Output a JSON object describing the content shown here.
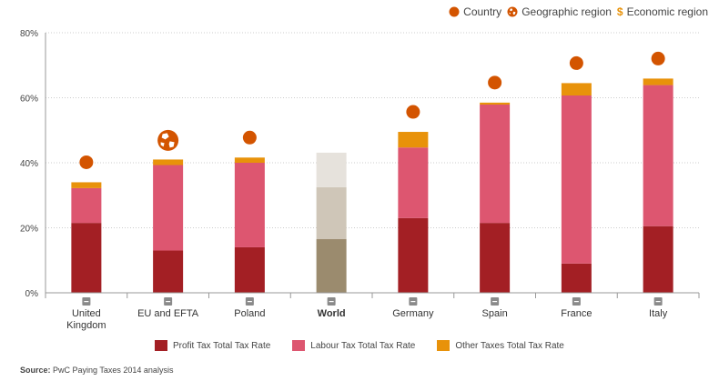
{
  "top_legend": {
    "country": "Country",
    "geographic_region": "Geographic region",
    "economic_region_symbol": "$",
    "economic_region": "Economic region"
  },
  "source": {
    "label": "Source:",
    "text": "PwC Paying Taxes 2014 analysis"
  },
  "colors": {
    "profit": "#a31f24",
    "labour": "#dd5670",
    "other": "#e8920a",
    "world_profit": "#9b8b6e",
    "world_labour": "#cfc6b8",
    "world_other": "#e6e2dc",
    "marker": "#d35400",
    "axis": "#999999",
    "grid": "#cccccc"
  },
  "chart_data": {
    "type": "bar",
    "stacked": true,
    "categories": [
      "United\nKingdom",
      "EU and EFTA",
      "Poland",
      "World",
      "Germany",
      "Spain",
      "France",
      "Italy"
    ],
    "highlight_category": "World",
    "series": [
      {
        "name": "Profit Tax Total Tax Rate",
        "values": [
          21.5,
          13,
          14,
          16.5,
          23,
          21.5,
          9,
          20.5
        ]
      },
      {
        "name": "Labour Tax Total Tax Rate",
        "values": [
          10.7,
          26.3,
          26,
          16,
          21.7,
          36.4,
          51.7,
          43.4
        ]
      },
      {
        "name": "Other Taxes Total Tax Rate",
        "values": [
          1.8,
          1.7,
          1.6,
          10.6,
          4.8,
          0.6,
          3.8,
          2
        ]
      }
    ],
    "markers": [
      "country",
      "region",
      "country",
      null,
      "country",
      "country",
      "country",
      "country"
    ],
    "y_ticks": [
      0,
      20,
      40,
      60,
      80
    ],
    "y_tick_labels": [
      "0%",
      "20%",
      "40%",
      "60%",
      "80%"
    ],
    "ylim": [
      0,
      80
    ],
    "grid": true,
    "legend_position": "bottom",
    "title": "",
    "xlabel": "",
    "ylabel": ""
  }
}
